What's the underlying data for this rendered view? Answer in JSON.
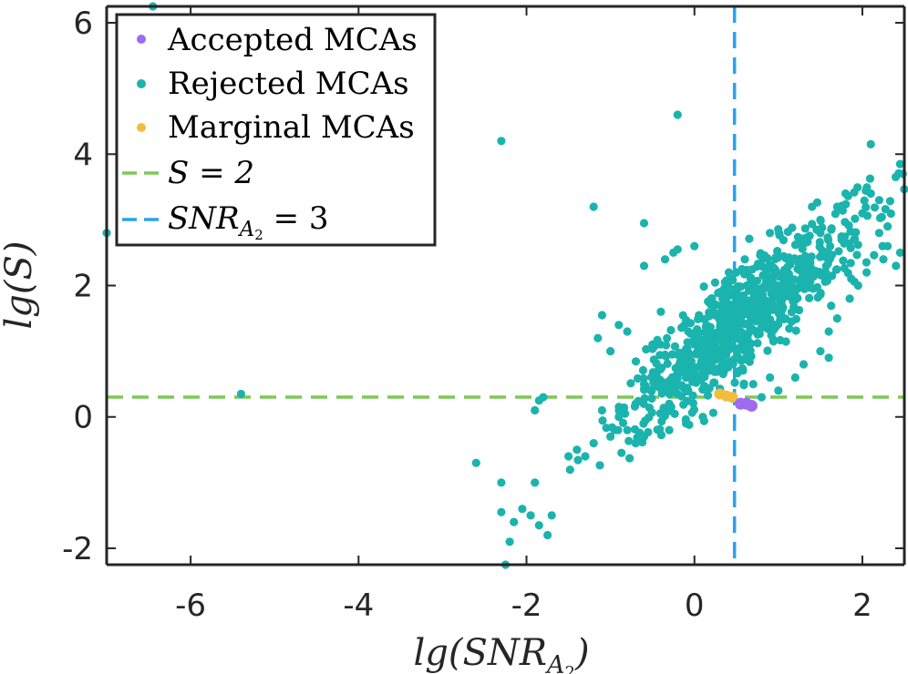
{
  "chart_data": {
    "type": "scatter",
    "xlabel": "lg(SNR",
    "xlabel_sub": "A",
    "xlabel_subsub": "2",
    "xlabel_close": ")",
    "ylabel": "lg(S)",
    "xlim": [
      -7,
      2.5
    ],
    "ylim": [
      -2.25,
      6.25
    ],
    "xticks": [
      -6,
      -4,
      -2,
      0,
      2
    ],
    "yticks": [
      -2,
      0,
      2,
      4,
      6
    ],
    "xtick_labels": [
      "-6",
      "-4",
      "-2",
      "0",
      "2"
    ],
    "ytick_labels": [
      "-2",
      "0",
      "2",
      "4",
      "6"
    ],
    "grid": false,
    "legend_placement": "top-left",
    "colors": {
      "accepted": "#9E6BF0",
      "rejected": "#1BB3AD",
      "marginal": "#F2BD3D",
      "s_threshold": "#7DC953",
      "snr_threshold": "#2AA1F0",
      "axes": "#262626"
    },
    "legend": [
      {
        "label": "Accepted MCAs",
        "kind": "marker",
        "color": "#9E6BF0"
      },
      {
        "label": "Rejected MCAs",
        "kind": "marker",
        "color": "#1BB3AD"
      },
      {
        "label": "Marginal MCAs",
        "kind": "marker",
        "color": "#F2BD3D"
      },
      {
        "label": "S = 2",
        "kind": "dashed",
        "color": "#7DC953"
      },
      {
        "label": "SNR",
        "label_sub": "A",
        "label_subsub": "2",
        "label_tail": " = 3",
        "kind": "dashed",
        "color": "#2AA1F0"
      }
    ],
    "reference_lines": [
      {
        "orientation": "horizontal",
        "y": 0.301,
        "color": "#7DC953"
      },
      {
        "orientation": "vertical",
        "x": 0.477,
        "color": "#2AA1F0"
      }
    ],
    "series": [
      {
        "name": "Accepted MCAs",
        "color": "#9E6BF0",
        "points": [
          [
            0.55,
            0.2
          ],
          [
            0.62,
            0.2
          ],
          [
            0.68,
            0.17
          ]
        ]
      },
      {
        "name": "Marginal MCAs",
        "color": "#F2BD3D",
        "points": [
          [
            0.3,
            0.35
          ],
          [
            0.45,
            0.3
          ],
          [
            0.38,
            0.32
          ]
        ]
      },
      {
        "name": "Rejected MCAs",
        "color": "#1BB3AD",
        "points": [
          [
            -6.45,
            6.25
          ],
          [
            -7.0,
            2.8
          ],
          [
            -5.4,
            0.35
          ],
          [
            -2.3,
            4.2
          ],
          [
            -0.2,
            4.6
          ],
          [
            2.1,
            4.15
          ],
          [
            2.45,
            3.85
          ],
          [
            2.48,
            3.7
          ],
          [
            -1.2,
            3.2
          ],
          [
            -0.6,
            2.95
          ],
          [
            -0.2,
            2.55
          ],
          [
            -0.25,
            2.5
          ],
          [
            -0.35,
            2.4
          ],
          [
            0.0,
            2.6
          ],
          [
            -0.6,
            2.3
          ],
          [
            -1.1,
            1.55
          ],
          [
            -1.8,
            0.3
          ],
          [
            -1.85,
            0.25
          ],
          [
            -1.9,
            0.1
          ],
          [
            -2.6,
            -0.7
          ],
          [
            -2.3,
            -1.0
          ],
          [
            -1.9,
            -1.0
          ],
          [
            -2.3,
            -1.45
          ],
          [
            -2.05,
            -1.4
          ],
          [
            -1.95,
            -1.5
          ],
          [
            -2.15,
            -1.6
          ],
          [
            -1.7,
            -1.5
          ],
          [
            -2.2,
            -1.9
          ],
          [
            -1.75,
            -1.8
          ],
          [
            -1.85,
            -1.65
          ],
          [
            -2.25,
            -2.25
          ],
          [
            -1.2,
            -0.4
          ],
          [
            -1.3,
            -0.6
          ],
          [
            -1.0,
            -0.3
          ],
          [
            -0.9,
            0.0
          ],
          [
            -0.8,
            -0.2
          ],
          [
            -0.7,
            0.2
          ],
          [
            -0.6,
            0.5
          ],
          [
            -1.15,
            1.2
          ],
          [
            -1.0,
            1.0
          ],
          [
            -0.9,
            1.4
          ],
          [
            -0.8,
            1.3
          ],
          [
            -0.5,
            1.1
          ],
          [
            -0.4,
            1.6
          ],
          [
            -1.1,
            0.1
          ],
          [
            -1.4,
            -0.5
          ],
          [
            -1.5,
            -0.6
          ],
          [
            -0.95,
            -0.2
          ],
          [
            -0.7,
            -0.4
          ],
          [
            -0.6,
            -0.3
          ],
          [
            -0.3,
            0.2
          ],
          [
            -0.1,
            0.6
          ],
          [
            0.2,
            1.8
          ],
          [
            0.3,
            1.9
          ],
          [
            0.4,
            2.0
          ],
          [
            0.45,
            2.1
          ],
          [
            1.9,
            2.7
          ],
          [
            2.0,
            3.1
          ],
          [
            2.2,
            2.8
          ],
          [
            2.3,
            2.9
          ],
          [
            2.2,
            3.3
          ],
          [
            2.1,
            3.4
          ],
          [
            1.8,
            3.4
          ],
          [
            1.7,
            3.2
          ],
          [
            1.5,
            3.0
          ],
          [
            1.4,
            3.2
          ],
          [
            2.3,
            2.6
          ],
          [
            2.45,
            2.5
          ],
          [
            2.25,
            2.4
          ],
          [
            2.4,
            2.3
          ],
          [
            1.6,
            0.9
          ],
          [
            1.5,
            1.0
          ],
          [
            1.3,
            0.8
          ],
          [
            1.2,
            0.6
          ],
          [
            1.0,
            0.4
          ],
          [
            0.9,
            0.6
          ],
          [
            0.8,
            0.3
          ],
          [
            0.7,
            0.5
          ],
          [
            0.9,
            2.8
          ],
          [
            0.6,
            2.4
          ],
          [
            0.5,
            2.2
          ],
          [
            1.5,
            2.8
          ],
          [
            2.05,
            2.2
          ],
          [
            1.95,
            2.0
          ],
          [
            1.85,
            1.8
          ],
          [
            1.7,
            1.5
          ],
          [
            1.6,
            1.3
          ],
          [
            0.1,
            0.0
          ],
          [
            -0.1,
            -0.1
          ],
          [
            -0.3,
            -0.2
          ]
        ],
        "cluster": {
          "count": 800,
          "x_center": 0.62,
          "x_spread": 0.7,
          "y_intercept": 0.9,
          "y_slope": 1.0,
          "y_spread": 0.38,
          "seed": 7
        }
      }
    ]
  }
}
